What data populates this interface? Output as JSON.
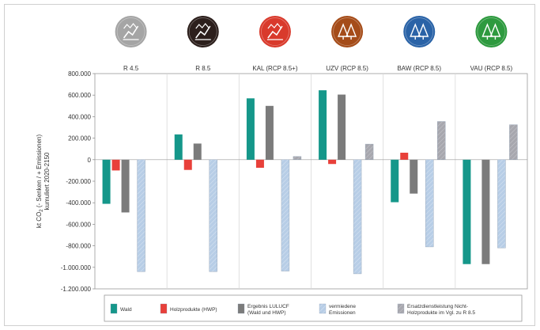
{
  "colors": {
    "wald": "#15978a",
    "hwp": "#e8403a",
    "lulucf": "#7b7b7b",
    "avoided": "#b7cde6",
    "substitution": "#a7a7ae",
    "icon_grey": "#a5a5a5",
    "icon_dark": "#2c1f1c",
    "icon_red": "#d93a2c",
    "icon_brown": "#a54c19",
    "icon_blue": "#2a63a7",
    "icon_green": "#2e9a3f"
  },
  "icons": [
    {
      "name": "temperature-scenario-icon",
      "color": "icon_grey"
    },
    {
      "name": "temperature-scenario-icon",
      "color": "icon_dark"
    },
    {
      "name": "calamity-scenario-icon",
      "color": "icon_red"
    },
    {
      "name": "forest-conversion-icon",
      "color": "icon_brown"
    },
    {
      "name": "biodiversity-forest-icon",
      "color": "icon_blue"
    },
    {
      "name": "wood-supply-forest-icon",
      "color": "icon_green"
    }
  ],
  "chart_data": {
    "type": "bar",
    "categories": [
      "R 4.5",
      "R 8.5",
      "KAL (RCP 8.5+)",
      "UZV (RCP 8.5)",
      "BAW (RCP 8.5)",
      "VAU (RCP 8.5)"
    ],
    "ylabel_line1": "kt CO",
    "ylabel_sub": "2",
    "ylabel_line1_rest": " (- Senken / + Emissionen)",
    "ylabel_line2": "kumuliert 2020-2150",
    "ylim": [
      -1200000,
      800000
    ],
    "yticks": [
      800000,
      600000,
      400000,
      200000,
      0,
      -200000,
      -400000,
      -600000,
      -800000,
      -1000000,
      -1200000
    ],
    "ytick_labels": [
      "800.000",
      "600.000",
      "400.000",
      "200.000",
      "0",
      "-200.000",
      "-400.000",
      "-600.000",
      "-800.000",
      "-1.000.000",
      "-1.200.000"
    ],
    "series": [
      {
        "name": "Wald",
        "key": "wald",
        "values": [
          -410000,
          235000,
          570000,
          645000,
          -395000,
          -970000
        ]
      },
      {
        "name": "Holzprodukte (HWP)",
        "key": "hwp",
        "values": [
          -100000,
          -95000,
          -75000,
          -40000,
          65000,
          null
        ]
      },
      {
        "name": "Ergebnis LULUCF (Wald und HWP)",
        "key": "lulucf",
        "values": [
          -490000,
          150000,
          500000,
          605000,
          -315000,
          -970000
        ]
      },
      {
        "name": "vermiedene Emissionen",
        "key": "avoided",
        "values": [
          -1040000,
          -1040000,
          -1035000,
          -1060000,
          -810000,
          -820000
        ]
      },
      {
        "name": "Ersatzdienstleistung Nicht-Holzprodukte im Vgl. zu R 8.5",
        "key": "substitution",
        "values": [
          null,
          null,
          30000,
          145000,
          355000,
          325000
        ]
      }
    ],
    "legend": [
      {
        "key": "wald",
        "lines": [
          "Wald"
        ]
      },
      {
        "key": "hwp",
        "lines": [
          "Holzprodukte (HWP)"
        ]
      },
      {
        "key": "lulucf",
        "lines": [
          "Ergebnis LULUCF",
          "(Wald und HWP)"
        ]
      },
      {
        "key": "avoided",
        "lines": [
          "vermiedene",
          "Emissionen"
        ]
      },
      {
        "key": "substitution",
        "lines": [
          "Ersatzdienstleistung Nicht-",
          "Holzprodukte im Vgl. zu R 8.5"
        ]
      }
    ],
    "legend_placement": "bottom",
    "grid": false
  }
}
